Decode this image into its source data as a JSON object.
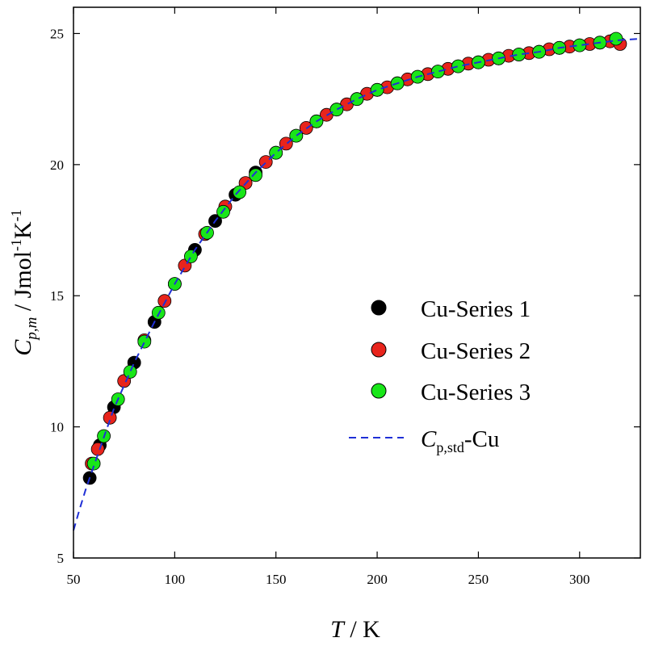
{
  "chart_data": {
    "type": "scatter",
    "xlabel": {
      "var": "T",
      "unit": " / K"
    },
    "ylabel": {
      "var": "C",
      "sub": "p,m",
      "unit": " / Jmol",
      "sup1": "-1",
      "unit2": "K",
      "sup2": "-1"
    },
    "xlim": [
      50,
      330
    ],
    "ylim": [
      5,
      26
    ],
    "x_ticks": [
      50,
      100,
      150,
      200,
      250,
      300
    ],
    "y_ticks": [
      5,
      10,
      15,
      20,
      25
    ],
    "grid": false,
    "legend_position": "center-right",
    "series": [
      {
        "name": "Cu-Series 1",
        "kind": "points",
        "color": "#000000",
        "x": [
          58,
          63,
          70,
          80,
          90,
          100,
          110,
          120,
          130,
          140,
          150,
          160,
          170,
          180,
          190,
          200,
          210,
          220,
          230,
          240,
          250,
          260,
          270,
          280,
          290,
          300,
          310,
          317
        ],
        "y": [
          8.05,
          9.3,
          10.75,
          12.45,
          14.0,
          15.45,
          16.75,
          17.85,
          18.85,
          19.7,
          20.45,
          21.1,
          21.65,
          22.1,
          22.5,
          22.85,
          23.1,
          23.35,
          23.55,
          23.75,
          23.9,
          24.05,
          24.2,
          24.3,
          24.45,
          24.55,
          24.65,
          24.75
        ]
      },
      {
        "name": "Cu-Series 2",
        "kind": "points",
        "color": "#e8241c",
        "x": [
          59,
          62,
          68,
          75,
          85,
          95,
          105,
          115,
          125,
          135,
          145,
          155,
          165,
          175,
          185,
          195,
          205,
          215,
          225,
          235,
          245,
          255,
          265,
          275,
          285,
          295,
          305,
          315,
          320
        ],
        "y": [
          8.6,
          9.15,
          10.35,
          11.75,
          13.3,
          14.8,
          16.15,
          17.35,
          18.4,
          19.3,
          20.1,
          20.8,
          21.4,
          21.9,
          22.3,
          22.7,
          22.95,
          23.25,
          23.45,
          23.65,
          23.85,
          24.0,
          24.15,
          24.25,
          24.4,
          24.5,
          24.6,
          24.7,
          24.6
        ]
      },
      {
        "name": "Cu-Series 3",
        "kind": "points",
        "color": "#19e619",
        "x": [
          60,
          65,
          72,
          78,
          85,
          92,
          100,
          108,
          116,
          124,
          132,
          140,
          150,
          160,
          170,
          180,
          190,
          200,
          210,
          220,
          230,
          240,
          250,
          260,
          270,
          280,
          290,
          300,
          310,
          318
        ],
        "y": [
          8.6,
          9.65,
          11.05,
          12.1,
          13.25,
          14.35,
          15.45,
          16.5,
          17.4,
          18.2,
          18.95,
          19.6,
          20.45,
          21.1,
          21.65,
          22.1,
          22.5,
          22.85,
          23.1,
          23.35,
          23.55,
          23.75,
          23.9,
          24.05,
          24.2,
          24.3,
          24.45,
          24.55,
          24.65,
          24.8
        ]
      },
      {
        "name": "C_{p,std}-Cu",
        "label_main": "C",
        "label_sub": "p,std",
        "label_suffix": "-Cu",
        "kind": "dashed-line",
        "color": "#1f2fd6",
        "x": [
          50,
          53,
          56,
          60,
          65,
          70,
          80,
          90,
          100,
          110,
          120,
          130,
          140,
          150,
          160,
          170,
          180,
          190,
          200,
          210,
          220,
          230,
          240,
          250,
          260,
          270,
          280,
          290,
          300,
          310,
          320,
          330
        ],
        "y": [
          6.05,
          6.85,
          7.6,
          8.5,
          9.6,
          10.7,
          12.45,
          14.0,
          15.45,
          16.75,
          17.85,
          18.85,
          19.7,
          20.45,
          21.1,
          21.65,
          22.1,
          22.5,
          22.85,
          23.1,
          23.35,
          23.55,
          23.75,
          23.9,
          24.05,
          24.2,
          24.3,
          24.45,
          24.55,
          24.65,
          24.75,
          24.8
        ]
      }
    ]
  }
}
